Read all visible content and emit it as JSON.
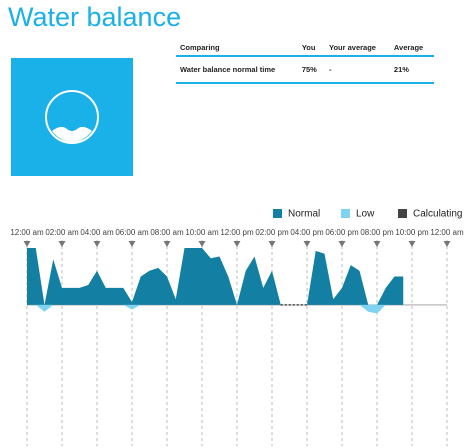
{
  "page": {
    "title": "Water balance"
  },
  "table": {
    "columns": [
      "Comparing",
      "You",
      "Your average",
      "Average"
    ],
    "rows": [
      [
        "Water balance normal time",
        "75%",
        "-",
        "21%"
      ]
    ]
  },
  "chart_data": {
    "type": "area",
    "x": [
      0,
      0.5,
      1,
      1.5,
      2,
      2.5,
      3,
      3.5,
      4,
      4.5,
      5,
      5.5,
      6,
      6.5,
      7,
      7.5,
      8,
      8.5,
      9,
      9.5,
      10,
      10.5,
      11,
      11.5,
      12,
      12.5,
      13,
      13.5,
      14,
      14.5,
      15,
      15.5,
      16,
      16.5,
      17,
      17.5,
      18,
      18.5,
      19,
      19.5,
      20,
      20.5,
      21,
      21.5,
      22,
      22.5,
      23,
      23.5,
      24
    ],
    "series": [
      {
        "name": "Normal",
        "color": "#137fa3",
        "style": "area",
        "values": [
          1,
          1,
          0,
          0.8,
          0.3,
          0.3,
          0.3,
          0.35,
          0.6,
          0.3,
          0.3,
          0.3,
          0.05,
          0.5,
          0.6,
          0.65,
          0.5,
          0.1,
          1,
          1,
          1,
          0.82,
          0.85,
          0.5,
          0,
          0.6,
          0.85,
          0.3,
          0.6,
          0,
          null,
          null,
          0,
          0.95,
          0.9,
          0.1,
          0.3,
          0.7,
          0.6,
          0,
          0,
          0.3,
          0.5,
          0.5,
          null,
          null,
          null,
          null,
          null
        ]
      },
      {
        "name": "Low",
        "color": "#7dd3f0",
        "style": "area",
        "values": [
          null,
          0,
          -0.12,
          0,
          null,
          null,
          null,
          null,
          null,
          null,
          null,
          0,
          -0.08,
          0,
          null,
          null,
          null,
          null,
          null,
          null,
          null,
          null,
          null,
          null,
          null,
          null,
          null,
          null,
          null,
          null,
          null,
          null,
          null,
          null,
          null,
          null,
          null,
          null,
          0,
          -0.12,
          -0.15,
          0,
          null,
          null,
          null,
          null,
          null,
          null,
          null
        ]
      },
      {
        "name": "Calculating",
        "color": "#444444",
        "style": "dotted",
        "values": [
          null,
          null,
          null,
          null,
          null,
          null,
          null,
          null,
          null,
          null,
          null,
          null,
          null,
          null,
          null,
          null,
          null,
          null,
          null,
          null,
          null,
          null,
          null,
          null,
          null,
          null,
          null,
          null,
          null,
          0,
          0,
          0,
          0,
          null,
          null,
          null,
          null,
          null,
          null,
          null,
          null,
          null,
          null,
          null,
          null,
          null,
          null,
          null,
          null
        ]
      }
    ],
    "xlim": [
      0,
      24
    ],
    "xticks": [
      {
        "value": 0,
        "label": "12:00 am"
      },
      {
        "value": 2,
        "label": "02:00 am"
      },
      {
        "value": 4,
        "label": "04:00 am"
      },
      {
        "value": 6,
        "label": "06:00 am"
      },
      {
        "value": 8,
        "label": "08:00 am"
      },
      {
        "value": 10,
        "label": "10:00 am"
      },
      {
        "value": 12,
        "label": "12:00 pm"
      },
      {
        "value": 14,
        "label": "02:00 pm"
      },
      {
        "value": 16,
        "label": "04:00 pm"
      },
      {
        "value": 18,
        "label": "06:00 pm"
      },
      {
        "value": 20,
        "label": "08:00 pm"
      },
      {
        "value": 22,
        "label": "10:00 pm"
      },
      {
        "value": 24,
        "label": "12:00 am"
      }
    ],
    "ylim": [
      -0.3,
      1
    ]
  }
}
